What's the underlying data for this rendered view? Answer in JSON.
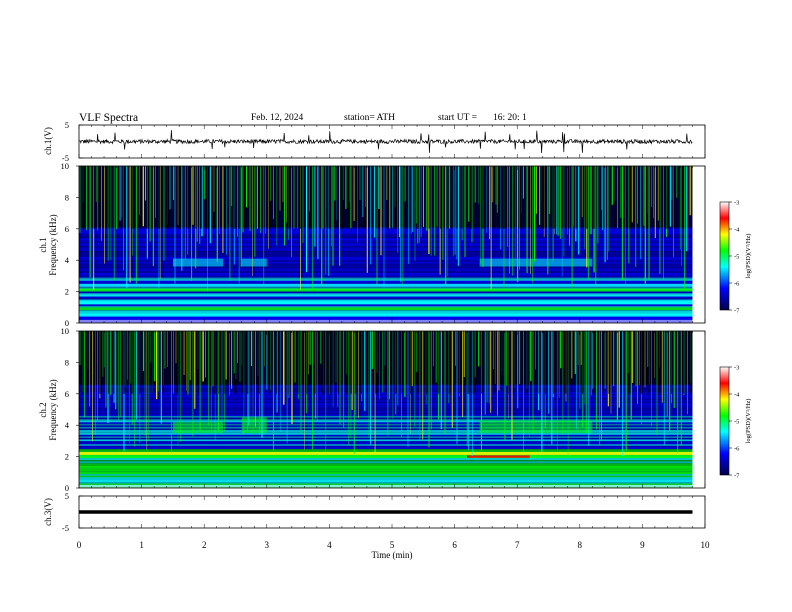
{
  "header": {
    "title": "VLF  Spectra",
    "date": "Feb. 12, 2024",
    "station": "station= ATH",
    "start_ut_label": "start  UT  =",
    "start_ut_value": "16: 20: 1"
  },
  "chart_data": [
    {
      "panel": "ch1-waveform",
      "type": "line",
      "ylabel": "ch.1(V)",
      "yticks": [
        "5",
        "-5"
      ],
      "ylim": [
        -5,
        5
      ],
      "xlim": [
        0,
        10
      ],
      "x_end": 9.8,
      "baseline": 0,
      "description_values": {
        "typical_amplitude_V": 0.6,
        "spike_amplitude_V": 3.5
      }
    },
    {
      "panel": "ch1-spectrogram",
      "type": "heatmap",
      "ylabel": "ch.1\nFrequency (kHz)",
      "ylabel_line1": "ch.1",
      "ylabel_line2": "Frequency (kHz)",
      "yticks": [
        "0",
        "2",
        "4",
        "6",
        "8",
        "10"
      ],
      "ylim": [
        0,
        10
      ],
      "xlim": [
        0,
        10
      ],
      "x_end": 9.8,
      "colorbar": {
        "label": "log(PSD)(V²/Hz)",
        "ticks": [
          "-3",
          "-4",
          "-5",
          "-6",
          "-7"
        ],
        "range": [
          -7,
          -3
        ]
      },
      "enhanced_bands_kHz": [
        0.5,
        0.9,
        1.3,
        2.1,
        2.4
      ],
      "hiss_patches": [
        {
          "t": [
            1.5,
            2.3
          ],
          "f": [
            3.6,
            4.1
          ]
        },
        {
          "t": [
            2.6,
            3.0
          ],
          "f": [
            3.6,
            4.1
          ]
        },
        {
          "t": [
            6.4,
            8.2
          ],
          "f": [
            3.6,
            4.1
          ]
        }
      ]
    },
    {
      "panel": "ch2-spectrogram",
      "type": "heatmap",
      "ylabel": "ch.2\nFrequency (kHz)",
      "ylabel_line1": "ch.2",
      "ylabel_line2": "Frequency (kHz)",
      "yticks": [
        "0",
        "2",
        "4",
        "6",
        "8",
        "10"
      ],
      "ylim": [
        0,
        10
      ],
      "xlim": [
        0,
        10
      ],
      "x_end": 9.8,
      "colorbar": {
        "label": "log(PSD)(V²/Hz)",
        "ticks": [
          "-3",
          "-4",
          "-5",
          "-6",
          "-7"
        ],
        "range": [
          -7,
          -3
        ]
      },
      "enhanced_bands_kHz": [
        2.0,
        2.2
      ],
      "red_line": {
        "t": [
          6.2,
          7.2
        ],
        "f": 2.0
      },
      "hiss_patches": [
        {
          "t": [
            1.5,
            2.3
          ],
          "f": [
            3.5,
            4.2
          ]
        },
        {
          "t": [
            2.6,
            3.0
          ],
          "f": [
            3.5,
            4.5
          ]
        },
        {
          "t": [
            6.4,
            8.2
          ],
          "f": [
            3.5,
            4.3
          ]
        }
      ]
    },
    {
      "panel": "ch3-waveform",
      "type": "line",
      "ylabel": "ch.3(V)",
      "yticks": [
        "5",
        "-5"
      ],
      "ylim": [
        -5,
        5
      ],
      "xlim": [
        0,
        10
      ],
      "x_end": 9.8,
      "baseline": 0,
      "xlabel": "Time  (min)",
      "xticks": [
        "0",
        "1",
        "2",
        "3",
        "4",
        "5",
        "6",
        "7",
        "8",
        "9",
        "10"
      ]
    }
  ],
  "colors": {
    "black": "#000000",
    "blue_dark": "#00004a",
    "blue": "#0000ff",
    "cyan": "#00ffff",
    "green": "#00ff00",
    "yellow": "#ffff00",
    "red": "#ff0000"
  }
}
